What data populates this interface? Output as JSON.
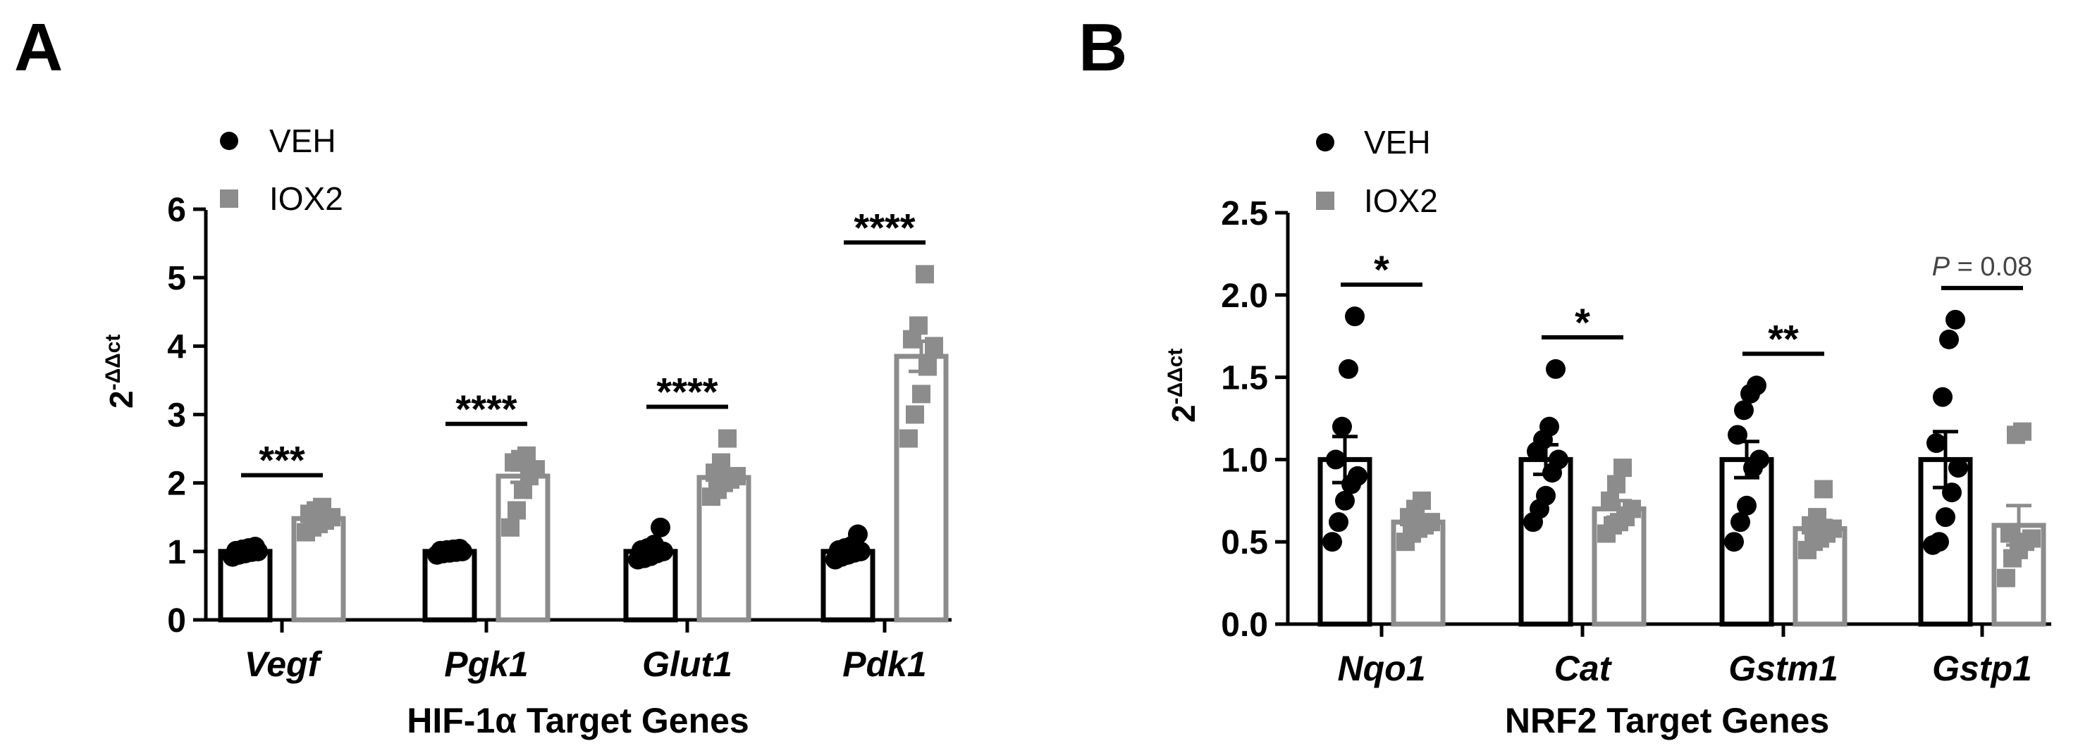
{
  "chart_data": [
    {
      "type": "bar",
      "panel_label": "A",
      "title": "",
      "xlabel": "HIF-1α Target Genes",
      "ylabel": "2-ΔΔct",
      "ylabel_base": "2",
      "ylabel_exp": "-ΔΔct",
      "ylim": [
        0,
        6
      ],
      "yticks": [
        "0",
        "1",
        "2",
        "3",
        "4",
        "5",
        "6"
      ],
      "categories": [
        "Vegf",
        "Pgk1",
        "Glut1",
        "Pdk1"
      ],
      "legend": {
        "position": "top-left",
        "entries": [
          "VEH",
          "IOX2"
        ]
      },
      "series": [
        {
          "name": "VEH",
          "color": "#000000",
          "values": [
            1.0,
            1.0,
            1.0,
            1.0
          ],
          "sem": [
            0.03,
            0.02,
            0.05,
            0.04
          ],
          "points": [
            [
              0.92,
              0.95,
              0.97,
              0.99,
              1.0,
              1.01,
              1.03,
              1.05,
              1.07
            ],
            [
              0.95,
              0.97,
              0.98,
              0.99,
              1.0,
              1.01,
              1.02,
              1.03,
              1.04
            ],
            [
              0.88,
              0.9,
              0.93,
              0.97,
              1.0,
              1.02,
              1.05,
              1.1,
              1.35
            ],
            [
              0.88,
              0.92,
              0.95,
              0.98,
              1.0,
              1.02,
              1.05,
              1.08,
              1.25
            ]
          ]
        },
        {
          "name": "IOX2",
          "color": "#8c8c8c",
          "values": [
            1.48,
            2.1,
            2.08,
            3.85
          ],
          "sem": [
            0.07,
            0.09,
            0.08,
            0.22
          ],
          "points": [
            [
              1.28,
              1.35,
              1.4,
              1.45,
              1.5,
              1.55,
              1.6,
              1.65
            ],
            [
              1.35,
              1.6,
              1.9,
              2.1,
              2.2,
              2.3,
              2.35,
              2.4
            ],
            [
              1.8,
              1.9,
              2.0,
              2.05,
              2.1,
              2.15,
              2.3,
              2.65
            ],
            [
              2.65,
              3.0,
              3.3,
              3.7,
              4.0,
              4.1,
              4.3,
              5.05
            ]
          ]
        }
      ],
      "significance": [
        "***",
        "****",
        "****",
        "****"
      ]
    },
    {
      "type": "bar",
      "panel_label": "B",
      "title": "",
      "xlabel": "NRF2 Target Genes",
      "ylabel": "2-ΔΔct",
      "ylabel_base": "2",
      "ylabel_exp": "-ΔΔct",
      "ylim": [
        0,
        2.5
      ],
      "yticks": [
        "0.0",
        "0.5",
        "1.0",
        "1.5",
        "2.0",
        "2.5"
      ],
      "categories": [
        "Nqo1",
        "Cat",
        "Gstm1",
        "Gstp1"
      ],
      "legend": {
        "position": "top-left",
        "entries": [
          "VEH",
          "IOX2"
        ]
      },
      "series": [
        {
          "name": "VEH",
          "color": "#000000",
          "values": [
            1.0,
            1.0,
            1.0,
            1.0
          ],
          "sem": [
            0.14,
            0.09,
            0.11,
            0.17
          ],
          "points": [
            [
              0.5,
              0.62,
              0.75,
              0.85,
              0.9,
              1.0,
              1.2,
              1.55,
              1.87
            ],
            [
              0.62,
              0.7,
              0.78,
              0.92,
              1.0,
              1.05,
              1.12,
              1.2,
              1.55
            ],
            [
              0.5,
              0.62,
              0.72,
              0.95,
              1.0,
              1.15,
              1.3,
              1.4,
              1.45
            ],
            [
              0.48,
              0.5,
              0.65,
              0.8,
              0.95,
              1.1,
              1.38,
              1.73,
              1.85
            ]
          ]
        },
        {
          "name": "IOX2",
          "color": "#8c8c8c",
          "values": [
            0.62,
            0.7,
            0.58,
            0.6
          ],
          "sem": [
            0.04,
            0.05,
            0.05,
            0.12
          ],
          "points": [
            [
              0.5,
              0.55,
              0.58,
              0.6,
              0.62,
              0.65,
              0.7,
              0.75
            ],
            [
              0.55,
              0.6,
              0.62,
              0.65,
              0.7,
              0.75,
              0.85,
              0.95
            ],
            [
              0.45,
              0.5,
              0.52,
              0.55,
              0.58,
              0.6,
              0.65,
              0.82
            ],
            [
              0.28,
              0.4,
              0.45,
              0.5,
              0.52,
              0.55,
              1.15,
              1.17
            ]
          ]
        }
      ],
      "significance": [
        "*",
        "*",
        "**",
        ""
      ],
      "pvalue_note": {
        "category_index": 3,
        "italic_part": "P",
        "rest": " = 0.08"
      }
    }
  ]
}
